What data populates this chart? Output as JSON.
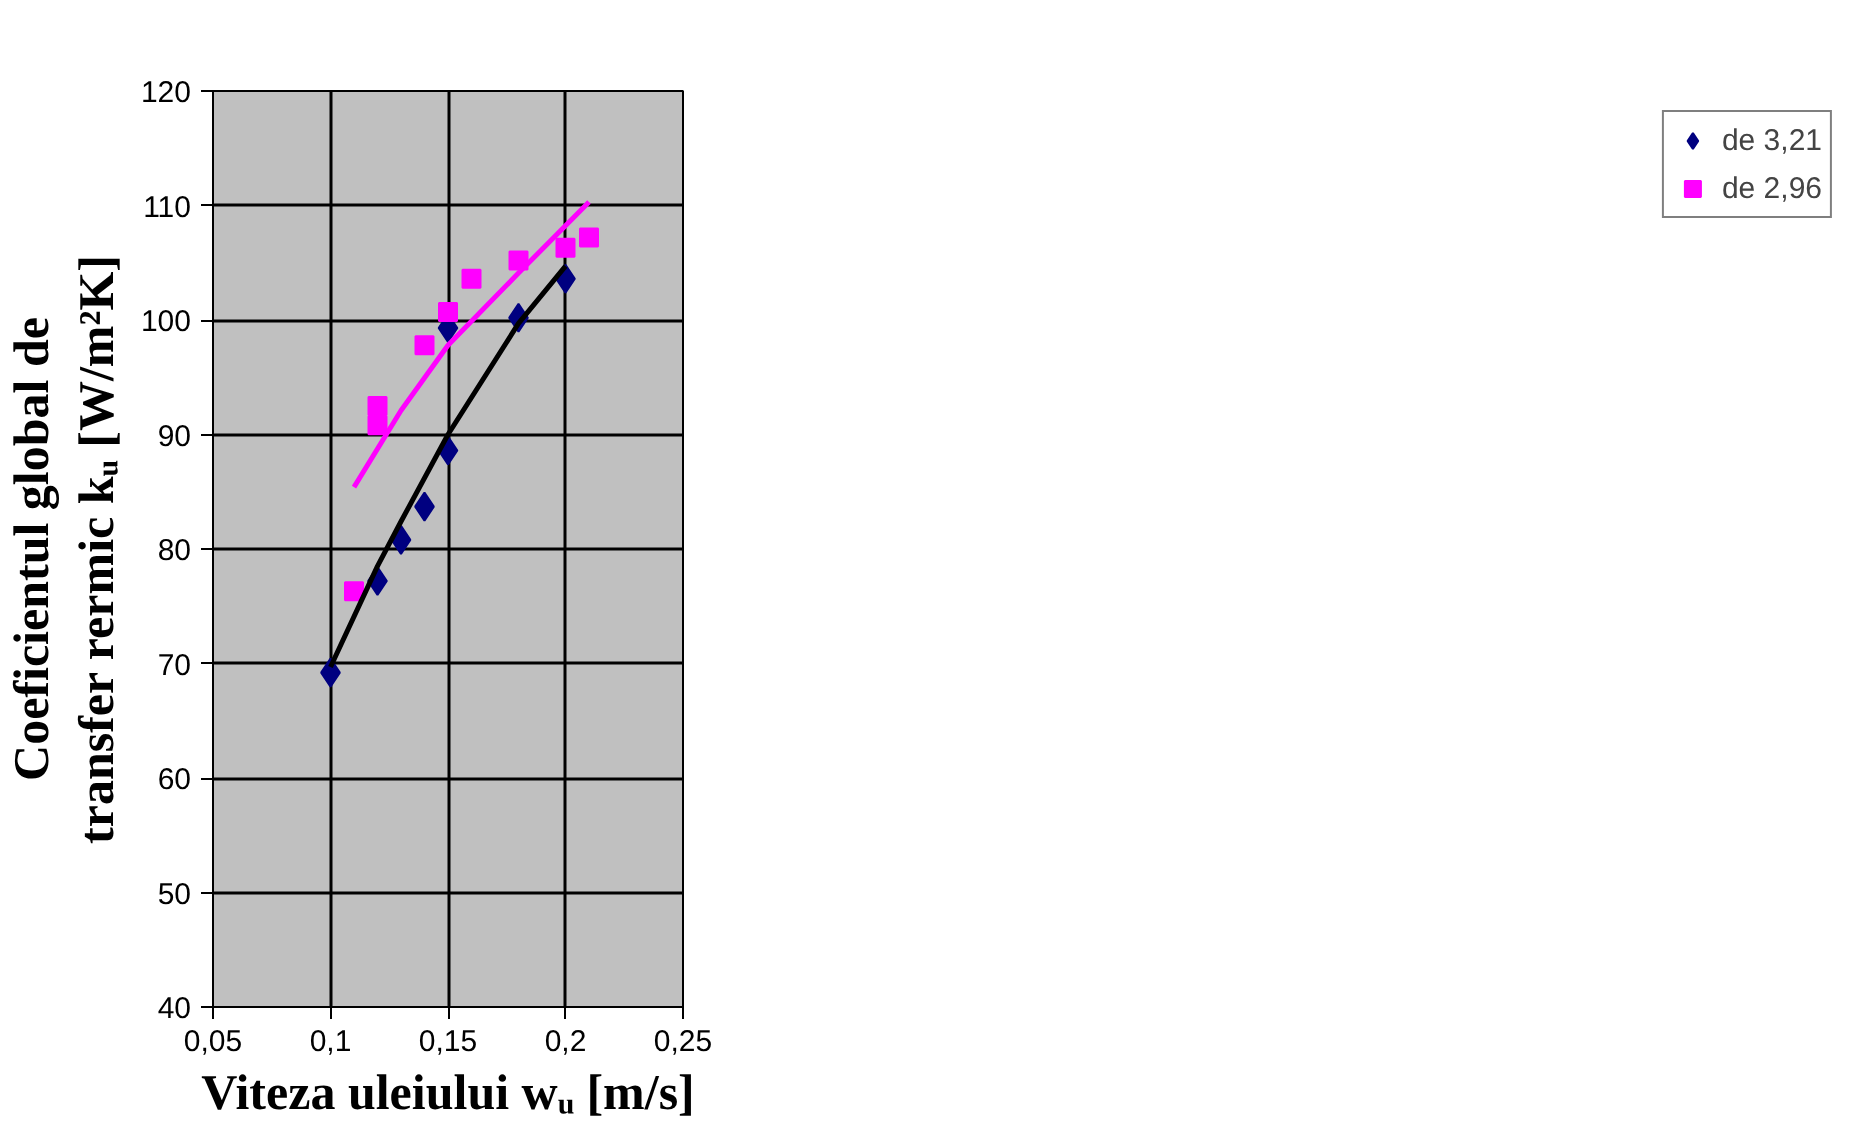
{
  "chart_data": {
    "type": "scatter",
    "xlabel": "Viteza uleiului wᵤ [m/s]",
    "ylabel": "Coeficientul global de\ntransfer rermic kᵤ [W/m²K]",
    "xlim": [
      0.05,
      0.25
    ],
    "ylim": [
      40,
      120
    ],
    "xticks": [
      {
        "value": 0.05,
        "label": "0,05"
      },
      {
        "value": 0.1,
        "label": "0,1"
      },
      {
        "value": 0.15,
        "label": "0,15"
      },
      {
        "value": 0.2,
        "label": "0,2"
      },
      {
        "value": 0.25,
        "label": "0,25"
      }
    ],
    "yticks": [
      40,
      50,
      60,
      70,
      80,
      90,
      100,
      110,
      120
    ],
    "grid": true,
    "legend": "right",
    "series": [
      {
        "name": "de 3,21",
        "color": "#000080",
        "marker": "diamond",
        "x": [
          0.1,
          0.12,
          0.13,
          0.14,
          0.15,
          0.15,
          0.18,
          0.2
        ],
        "values": [
          69.2,
          77.2,
          80.8,
          83.7,
          88.6,
          99.3,
          100.2,
          103.6
        ]
      },
      {
        "name": "de 2,96",
        "color": "#ff00ff",
        "marker": "square",
        "x": [
          0.11,
          0.12,
          0.12,
          0.14,
          0.15,
          0.16,
          0.18,
          0.2,
          0.21
        ],
        "values": [
          76.3,
          92.5,
          90.8,
          97.8,
          100.7,
          103.6,
          105.2,
          106.3,
          107.2
        ]
      },
      {
        "type": "line",
        "color": "#000000",
        "x": [
          0.1,
          0.12,
          0.13,
          0.15,
          0.18,
          0.2
        ],
        "values": [
          69.7,
          78.5,
          82.4,
          90,
          99.7,
          104.7
        ]
      },
      {
        "type": "line",
        "color": "#ff00ff",
        "x": [
          0.11,
          0.13,
          0.15,
          0.18,
          0.21
        ],
        "values": [
          85.4,
          92.1,
          97.8,
          104.1,
          110.3
        ]
      }
    ]
  }
}
